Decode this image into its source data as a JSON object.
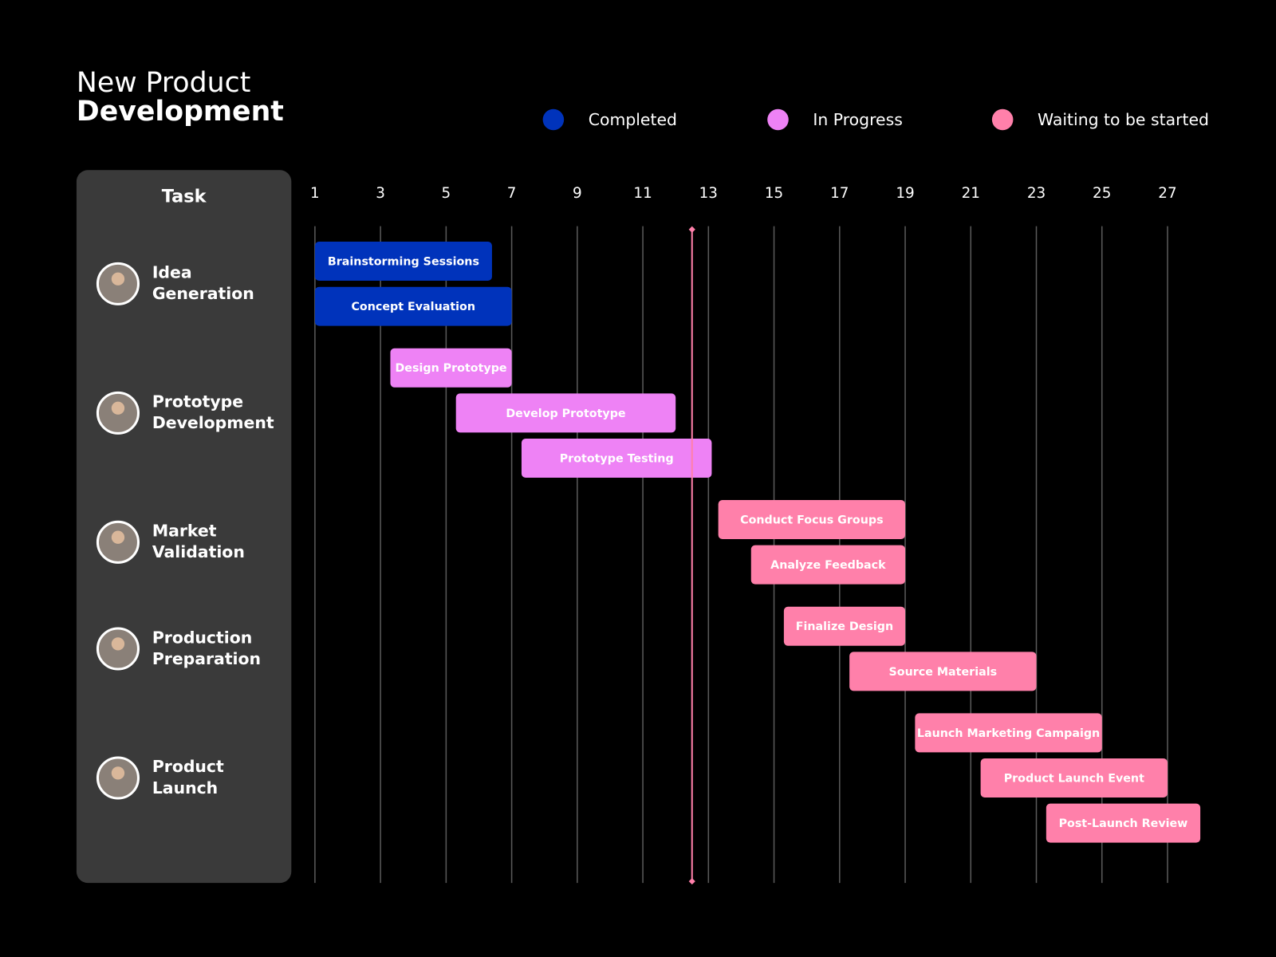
{
  "chart_data": {
    "type": "gantt",
    "title": [
      "New Product",
      "Development"
    ],
    "task_header": "Task",
    "legend": [
      {
        "name": "Completed",
        "color": "#0033bb"
      },
      {
        "name": "In Progress",
        "color": "#ee82f5"
      },
      {
        "name": "Waiting to be started",
        "color": "#ff80aa"
      }
    ],
    "xlim": [
      1,
      28
    ],
    "xticks": [
      1,
      3,
      5,
      7,
      9,
      11,
      13,
      15,
      17,
      19,
      21,
      23,
      25,
      27
    ],
    "grid": true,
    "today": 12.5,
    "today_color": "#ff80aa",
    "phases": [
      {
        "label": [
          "Idea",
          "Generation"
        ],
        "tasks": [
          {
            "name": "Brainstorming  Sessions",
            "color": "#0033bb",
            "start": 1,
            "end": 6.4
          },
          {
            "name": "Concept Evaluation",
            "color": "#0033bb",
            "start": 1,
            "end": 7
          }
        ]
      },
      {
        "label": [
          "Prototype",
          "Development"
        ],
        "tasks": [
          {
            "name": "Design Prototype",
            "color": "#ee82f5",
            "start": 3.3,
            "end": 7
          },
          {
            "name": "Develop Prototype",
            "color": "#ee82f5",
            "start": 5.3,
            "end": 12
          },
          {
            "name": "Prototype Testing",
            "color": "#ee82f5",
            "start": 7.3,
            "end": 13.1
          }
        ]
      },
      {
        "label": [
          "Market",
          "Validation"
        ],
        "tasks": [
          {
            "name": "Conduct Focus Groups",
            "color": "#ff80aa",
            "start": 13.3,
            "end": 19
          },
          {
            "name": "Analyze Feedback",
            "color": "#ff80aa",
            "start": 14.3,
            "end": 19
          }
        ]
      },
      {
        "label": [
          "Production",
          "Preparation"
        ],
        "tasks": [
          {
            "name": "Finalize Design",
            "color": "#ff80aa",
            "start": 15.3,
            "end": 19
          },
          {
            "name": "Source Materials",
            "color": "#ff80aa",
            "start": 17.3,
            "end": 23
          }
        ]
      },
      {
        "label": [
          "Product",
          "Launch"
        ],
        "tasks": [
          {
            "name": "Launch Marketing Campaign",
            "color": "#ff80aa",
            "start": 19.3,
            "end": 25
          },
          {
            "name": "Product Launch Event",
            "color": "#ff80aa",
            "start": 21.3,
            "end": 27
          },
          {
            "name": "Post-Launch Review",
            "color": "#ff80aa",
            "start": 23.3,
            "end": 28
          }
        ]
      }
    ]
  }
}
